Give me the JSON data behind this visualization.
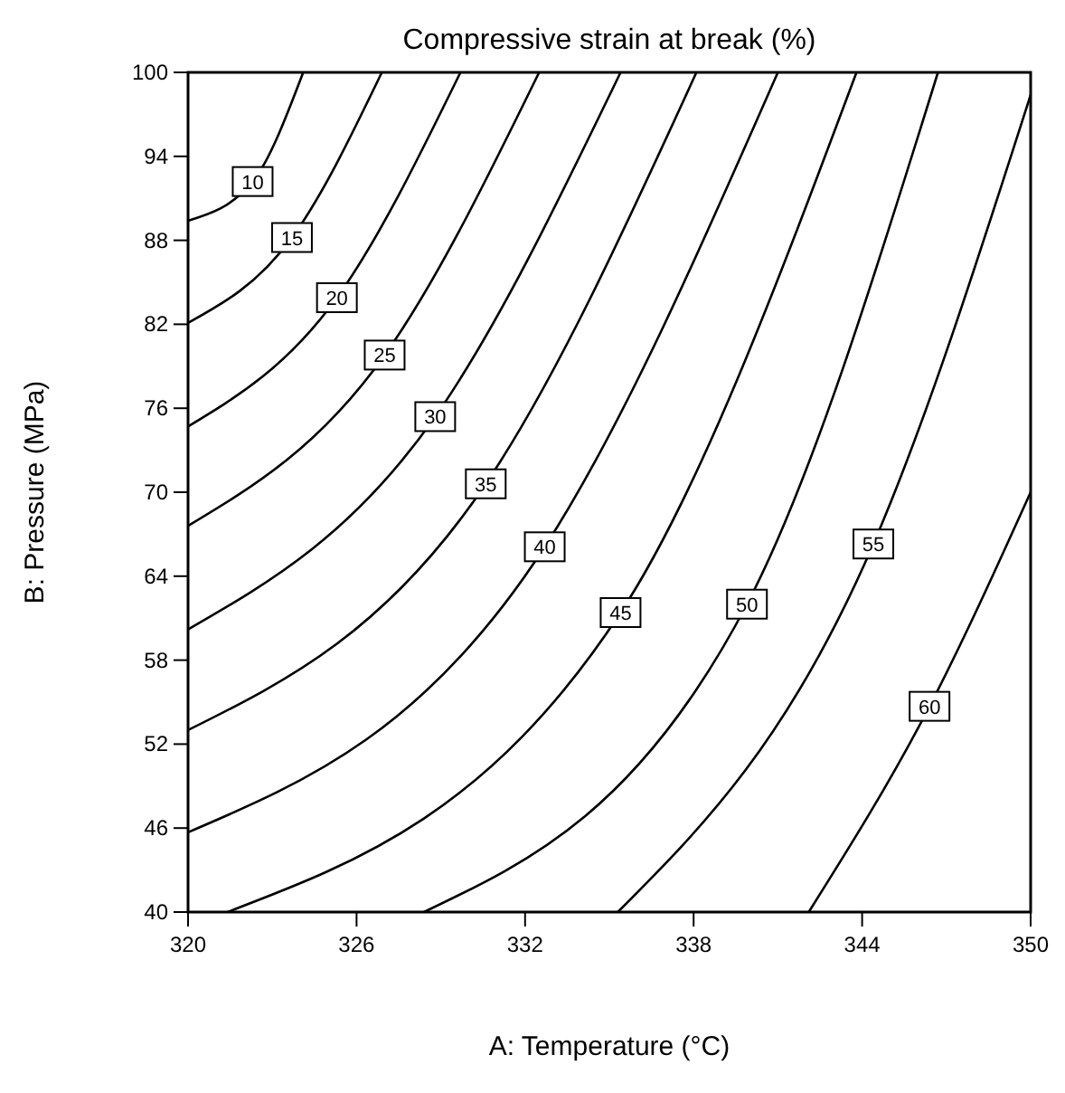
{
  "chart_data": {
    "type": "line",
    "title": "Compressive strain at break (%)",
    "xlabel": "A: Temperature (°C)",
    "ylabel": "B: Pressure (MPa)",
    "xlim": [
      320,
      350
    ],
    "xticks": [
      320,
      326,
      332,
      338,
      344,
      350
    ],
    "ylim": [
      40,
      100
    ],
    "yticks": [
      40,
      46,
      52,
      58,
      64,
      70,
      76,
      82,
      88,
      94,
      100
    ],
    "grid": false,
    "marker": "none",
    "line_style": "solid",
    "series": [
      {
        "name": "10",
        "color": "#000000",
        "x": [
          320,
          322.3,
          324.1
        ],
        "values": [
          89.4,
          92.2,
          100
        ]
      },
      {
        "name": "15",
        "color": "#000000",
        "x": [
          320,
          323.7,
          326.9
        ],
        "values": [
          82.1,
          88.2,
          100
        ]
      },
      {
        "name": "20",
        "color": "#000000",
        "x": [
          320,
          325.3,
          329.7
        ],
        "values": [
          74.7,
          83.9,
          100
        ]
      },
      {
        "name": "25",
        "color": "#000000",
        "x": [
          320,
          327,
          332.5
        ],
        "values": [
          67.6,
          79.8,
          100
        ]
      },
      {
        "name": "30",
        "color": "#000000",
        "x": [
          320,
          328.8,
          335.4
        ],
        "values": [
          60.2,
          75.4,
          100
        ]
      },
      {
        "name": "35",
        "color": "#000000",
        "x": [
          320,
          330.6,
          338.1
        ],
        "values": [
          53,
          70.6,
          100
        ]
      },
      {
        "name": "40",
        "color": "#000000",
        "x": [
          320,
          332.7,
          341
        ],
        "values": [
          45.7,
          66.1,
          100
        ]
      },
      {
        "name": "45",
        "color": "#000000",
        "x": [
          321.4,
          335.4,
          343.8
        ],
        "values": [
          40,
          61.4,
          100
        ]
      },
      {
        "name": "50",
        "color": "#000000",
        "x": [
          328.4,
          339.9,
          346.7
        ],
        "values": [
          40,
          62,
          100
        ]
      },
      {
        "name": "55",
        "color": "#000000",
        "x": [
          335.3,
          344.4,
          350
        ],
        "values": [
          40,
          66.3,
          98.4
        ]
      },
      {
        "name": "60",
        "color": "#000000",
        "x": [
          342.1,
          346.4,
          350
        ],
        "values": [
          40,
          54.7,
          70
        ]
      }
    ]
  }
}
